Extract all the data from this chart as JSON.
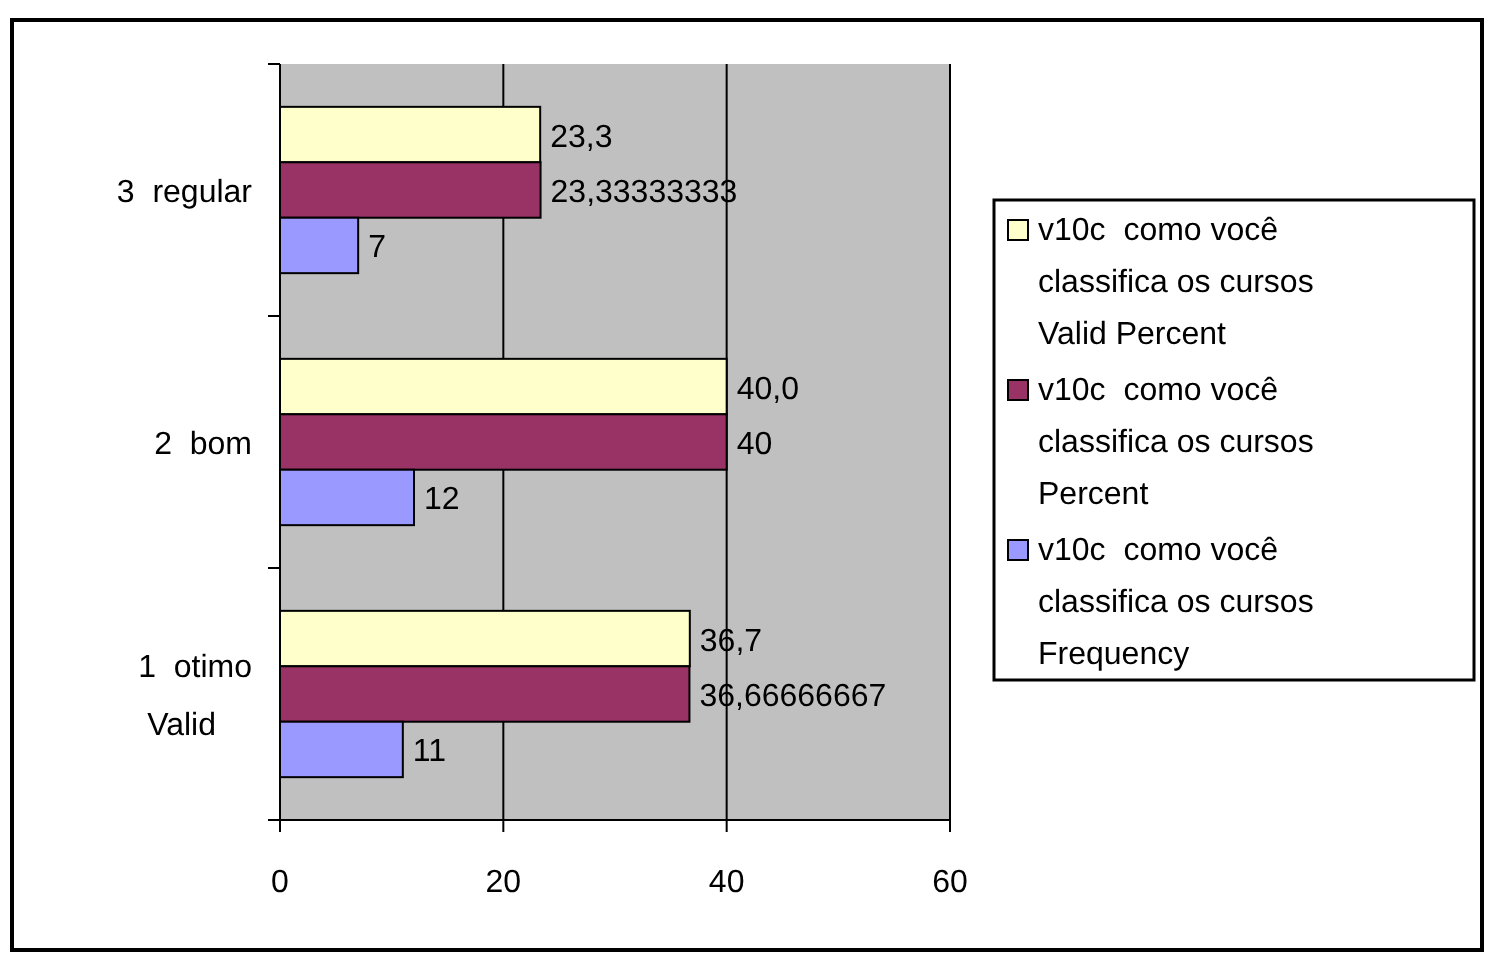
{
  "chart_data": {
    "type": "bar",
    "orientation": "horizontal",
    "categories": [
      "3  regular",
      "2  bom",
      "1  otimo Valid"
    ],
    "series": [
      {
        "name": "v10c  como você classifica os cursos Valid Percent",
        "color": "#ffffcc",
        "values": [
          23.3,
          40.0,
          36.7
        ],
        "value_labels": [
          "23,3",
          "40,0",
          "36,7"
        ]
      },
      {
        "name": "v10c  como você classifica os cursos Percent",
        "color": "#993366",
        "values": [
          23.33333333,
          40,
          36.66666667
        ],
        "value_labels": [
          "23,33333333",
          "40",
          "36,66666667"
        ]
      },
      {
        "name": "v10c  como você classifica os cursos Frequency",
        "color": "#9999ff",
        "values": [
          7,
          12,
          11
        ],
        "value_labels": [
          "7",
          "12",
          "11"
        ]
      }
    ],
    "xlim": [
      0,
      60
    ],
    "xticks": [
      0,
      20,
      40,
      60
    ],
    "grid": "x",
    "legend": "right"
  }
}
